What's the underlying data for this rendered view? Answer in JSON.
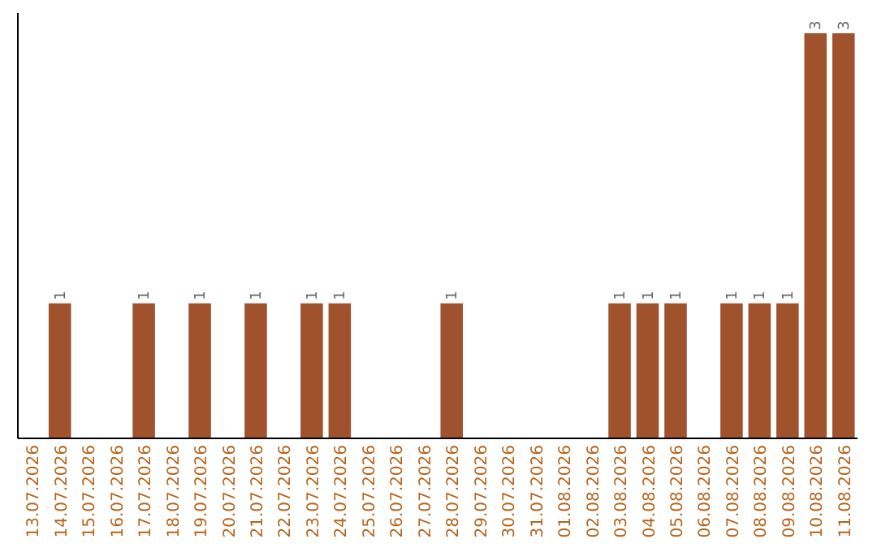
{
  "chart_data": {
    "type": "bar",
    "categories": [
      "13.07.2026",
      "14.07.2026",
      "15.07.2026",
      "16.07.2026",
      "17.07.2026",
      "18.07.2026",
      "19.07.2026",
      "20.07.2026",
      "21.07.2026",
      "22.07.2026",
      "23.07.2026",
      "24.07.2026",
      "25.07.2026",
      "26.07.2026",
      "27.07.2026",
      "28.07.2026",
      "29.07.2026",
      "30.07.2026",
      "31.07.2026",
      "01.08.2026",
      "02.08.2026",
      "03.08.2026",
      "04.08.2026",
      "05.08.2026",
      "06.08.2026",
      "07.08.2026",
      "08.08.2026",
      "09.08.2026",
      "10.08.2026",
      "11.08.2026"
    ],
    "values": [
      0,
      1,
      0,
      0,
      1,
      0,
      1,
      0,
      1,
      0,
      1,
      1,
      0,
      0,
      0,
      1,
      0,
      0,
      0,
      0,
      0,
      1,
      1,
      1,
      0,
      1,
      1,
      1,
      3,
      3
    ],
    "value_labels": [
      null,
      "1",
      null,
      null,
      "1",
      null,
      "1",
      null,
      "1",
      null,
      "1",
      "1",
      null,
      null,
      null,
      "1",
      null,
      null,
      null,
      null,
      null,
      "1",
      "1",
      "1",
      null,
      "1",
      "1",
      "1",
      "3",
      "3"
    ],
    "color": "#a0522d",
    "ylim": [
      0,
      3.15
    ],
    "tick_labels": "x"
  }
}
